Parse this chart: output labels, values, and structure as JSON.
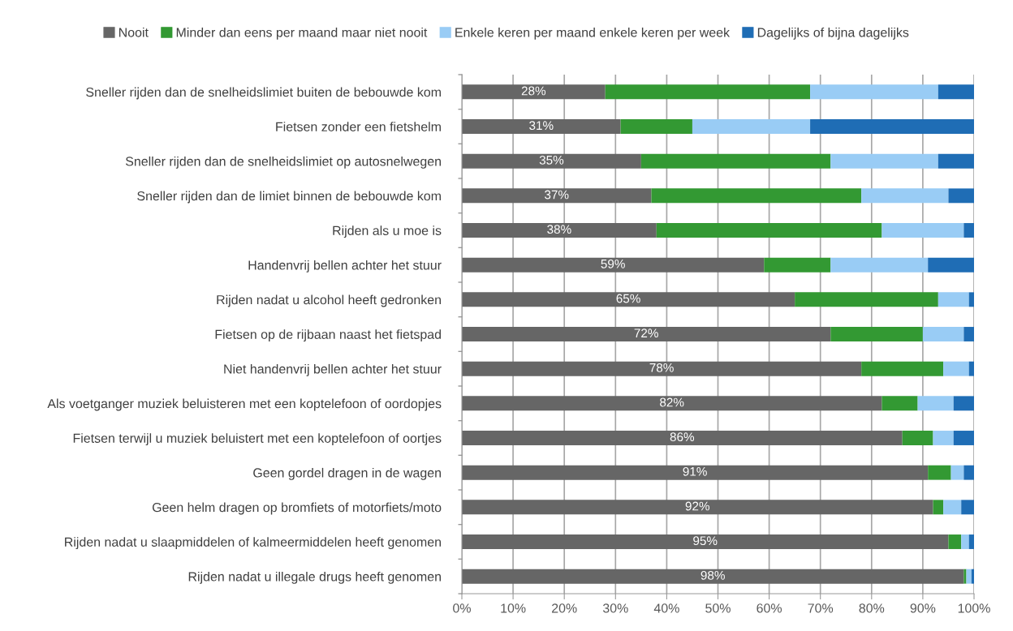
{
  "chart_data": {
    "type": "bar",
    "orientation": "horizontal",
    "stacked": true,
    "categories": [
      "Sneller rijden dan de snelheidslimiet buiten de bebouwde kom",
      "Fietsen zonder een fietshelm",
      "Sneller rijden dan de snelheidslimiet op autosnelwegen",
      "Sneller rijden dan de limiet binnen de bebouwde kom",
      "Rijden als u moe is",
      "Handenvrij bellen achter het stuur",
      "Rijden nadat u alcohol heeft gedronken",
      "Fietsen op de rijbaan naast het fietspad",
      "Niet handenvrij bellen achter het stuur",
      "Als voetganger muziek beluisteren met een koptelefoon of oordopjes",
      "Fietsen terwijl u muziek beluistert met een koptelefoon of oortjes",
      "Geen gordel dragen in de wagen",
      "Geen helm dragen op bromfiets of motorfiets/moto",
      "Rijden nadat u slaapmiddelen of kalmeermiddelen heeft genomen",
      "Rijden nadat u illegale drugs heeft genomen"
    ],
    "series": [
      {
        "name": "Nooit",
        "color": "#666666",
        "values": [
          28,
          31,
          35,
          37,
          38,
          59,
          65,
          72,
          78,
          82,
          86,
          91,
          92,
          95,
          98
        ],
        "value_labels": [
          "28%",
          "31%",
          "35%",
          "37%",
          "38%",
          "59%",
          "65%",
          "72%",
          "78%",
          "82%",
          "86%",
          "91%",
          "92%",
          "95%",
          "98%"
        ]
      },
      {
        "name": "Minder dan eens per maand maar niet nooit",
        "color": "#339933",
        "values": [
          40,
          14,
          37,
          41,
          44,
          13,
          28,
          18,
          16,
          7,
          6,
          4.5,
          2,
          2.5,
          0.5
        ]
      },
      {
        "name": "Enkele keren per maand enkele keren per week",
        "color": "#99ccf5",
        "values": [
          25,
          23,
          21,
          17,
          16,
          19,
          6,
          8,
          5,
          7,
          4,
          2.5,
          3.5,
          1.5,
          1
        ]
      },
      {
        "name": "Dagelijks of bijna dagelijks",
        "color": "#1f6db5",
        "values": [
          7,
          32,
          7,
          5,
          2,
          9,
          1,
          2,
          1,
          4,
          4,
          2,
          2.5,
          1,
          0.5
        ]
      }
    ],
    "xlim": [
      0,
      100
    ],
    "xticks": [
      {
        "value": 0,
        "label": "0%"
      },
      {
        "value": 10,
        "label": "10%"
      },
      {
        "value": 20,
        "label": "20%"
      },
      {
        "value": 30,
        "label": "30%"
      },
      {
        "value": 40,
        "label": "40%"
      },
      {
        "value": 50,
        "label": "50%"
      },
      {
        "value": 60,
        "label": "60%"
      },
      {
        "value": 70,
        "label": "70%"
      },
      {
        "value": 80,
        "label": "80%"
      },
      {
        "value": 90,
        "label": "90%"
      },
      {
        "value": 100,
        "label": "100%"
      }
    ],
    "grid": "x",
    "legend": "top"
  }
}
